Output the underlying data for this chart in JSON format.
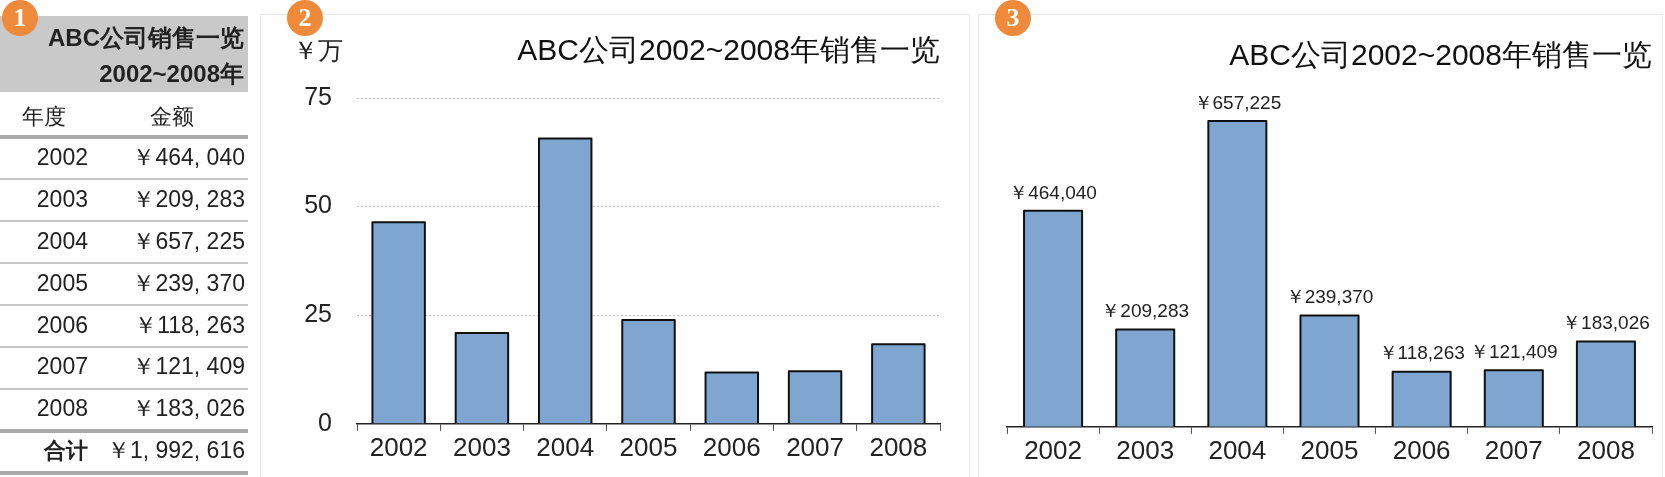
{
  "chart_data": [
    {
      "type": "heatmap",
      "title": "ABC公司销售一览",
      "subtitle": "2002~2008年",
      "ylabel": "年度",
      "annotations": [
        "1"
      ],
      "categories": [
        "金额"
      ],
      "y_categories": [
        "2002",
        "2003",
        "2004",
        "2005",
        "2006",
        "2007",
        "2008",
        "合计"
      ],
      "cells": [
        [
          null
        ],
        [
          null
        ],
        [
          null
        ],
        [
          null
        ],
        [
          null
        ],
        [
          null
        ],
        [
          null
        ],
        [
          null
        ]
      ],
      "cell_labels": [
        [
          "￥464, 040"
        ],
        [
          "￥209, 283"
        ],
        [
          "￥657, 225"
        ],
        [
          "￥239, 370"
        ],
        [
          "￥118, 263"
        ],
        [
          "￥121, 409"
        ],
        [
          "￥183, 026"
        ],
        [
          "￥1, 992, 616"
        ]
      ],
      "grid": "y"
    },
    {
      "type": "bar",
      "title": "ABC公司2002~2008年销售一览",
      "ylabel": "￥万",
      "annotations": [
        "2"
      ],
      "categories": [
        "2002",
        "2003",
        "2004",
        "2005",
        "2006",
        "2007",
        "2008"
      ],
      "values": [
        46.4,
        20.9,
        65.7,
        23.9,
        11.8,
        12.1,
        18.3
      ],
      "color": "#7ea6d0",
      "ylim": [
        0,
        75
      ],
      "yticks": [
        0,
        25,
        50,
        75
      ],
      "grid": "y"
    },
    {
      "type": "bar",
      "title": "ABC公司2002~2008年销售一览",
      "annotations": [
        "3"
      ],
      "categories": [
        "2002",
        "2003",
        "2004",
        "2005",
        "2006",
        "2007",
        "2008"
      ],
      "values": [
        464040,
        209283,
        657225,
        239370,
        118263,
        121409,
        183026
      ],
      "value_labels": [
        "￥464,040",
        "￥209,283",
        "￥657,225",
        "￥239,370",
        "￥118,263",
        "￥121,409",
        "￥183,026"
      ],
      "color": "#7ea6d0",
      "tick_labels": "x"
    }
  ]
}
